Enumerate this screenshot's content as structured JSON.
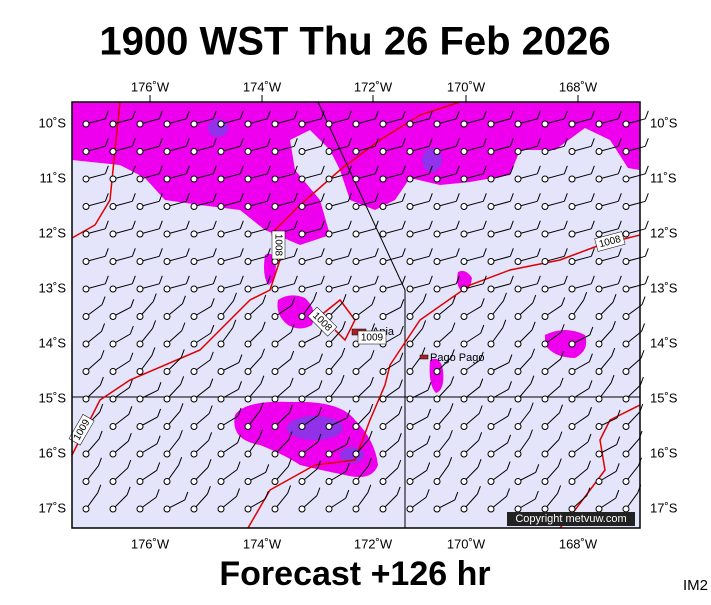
{
  "title": "1900 WST Thu 26 Feb 2026",
  "footer": "Forecast +126 hr",
  "corner_label": "IM2",
  "copyright": "Copyright metvuw.com",
  "map": {
    "lon_labels": [
      "176˚W",
      "174˚W",
      "172˚W",
      "170˚W",
      "168˚W"
    ],
    "lat_labels": [
      "10˚S",
      "11˚S",
      "12˚S",
      "13˚S",
      "14˚S",
      "15˚S",
      "16˚S",
      "17˚S"
    ],
    "places": [
      "Apia",
      "Pago Pago"
    ],
    "contour_labels": [
      "1008",
      "1008",
      "1008",
      "1009",
      "1009"
    ]
  }
}
